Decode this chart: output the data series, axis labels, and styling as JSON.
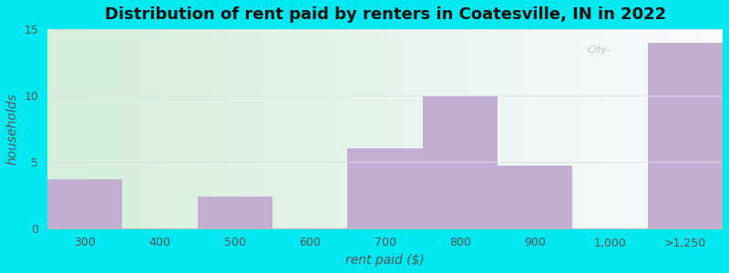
{
  "categories": [
    "300",
    "400",
    "500",
    "600",
    "700",
    "800",
    "900",
    "1,000",
    ">1,250"
  ],
  "values": [
    3.7,
    0,
    2.4,
    0,
    6.0,
    10.0,
    4.7,
    0,
    14.0
  ],
  "bar_color": "#c4afd4",
  "title": "Distribution of rent paid by renters in Coatesville, IN in 2022",
  "xlabel": "rent paid ($)",
  "ylabel": "households",
  "ylim": [
    0,
    15
  ],
  "yticks": [
    0,
    5,
    10,
    15
  ],
  "title_fontsize": 13,
  "label_fontsize": 10,
  "tick_fontsize": 9,
  "background_outer": "#00e8f0",
  "grid_color": "#dddddd",
  "watermark": "City-",
  "gradient_left": "#d4eeda",
  "gradient_right": "#f8f8ff"
}
